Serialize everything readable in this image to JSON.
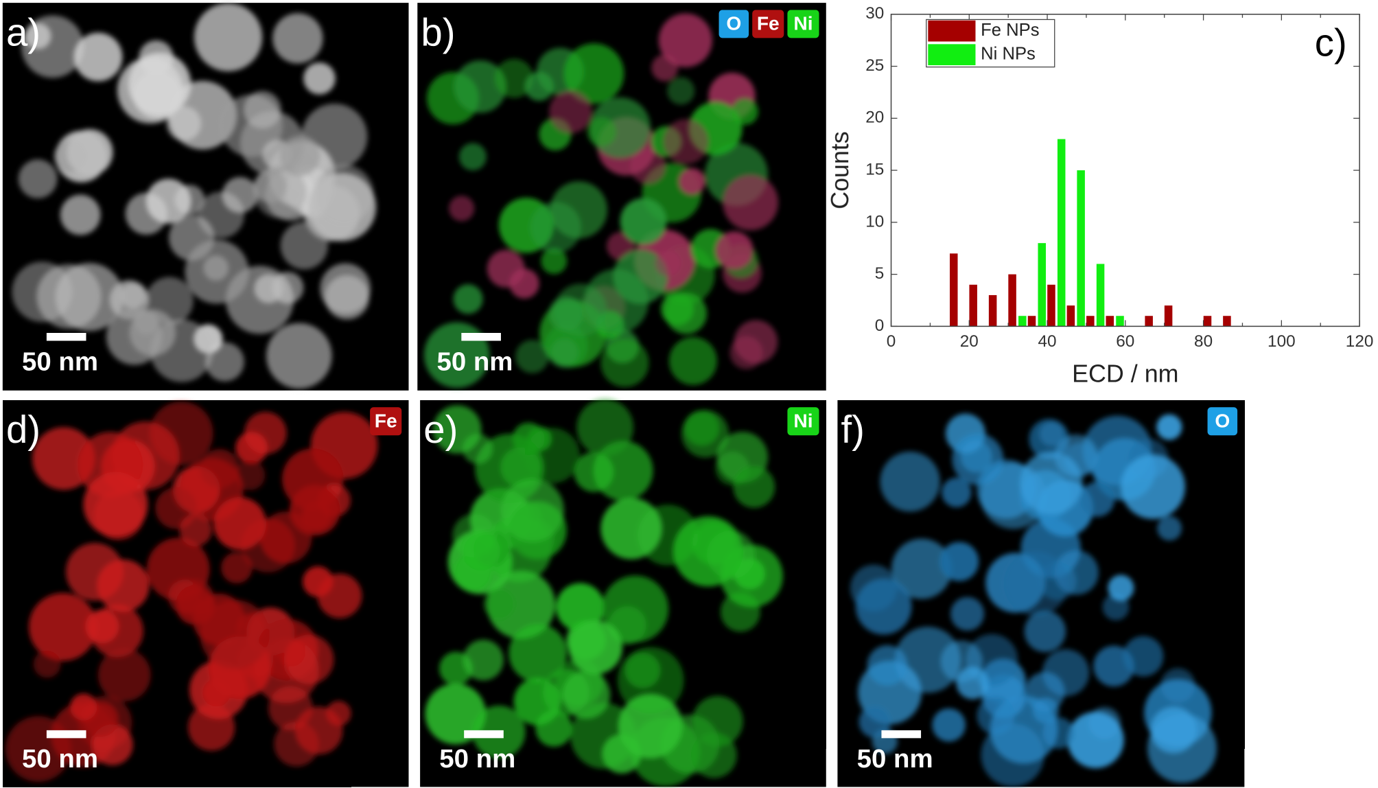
{
  "panels": [
    {
      "label": "a)",
      "scale_bar": "50 nm"
    },
    {
      "label": "b)",
      "scale_bar": "50 nm",
      "badges": [
        "O",
        "Fe",
        "Ni"
      ]
    },
    {
      "label": "d)",
      "scale_bar": "50 nm",
      "badges": [
        "Fe"
      ]
    },
    {
      "label": "e)",
      "scale_bar": "50 nm",
      "badges": [
        "Ni"
      ]
    },
    {
      "label": "f)",
      "scale_bar": "50 nm",
      "badges": [
        "O"
      ]
    }
  ],
  "chart_data": {
    "type": "bar",
    "panel_label": "c)",
    "x_label": "ECD / nm",
    "y_label": "Counts",
    "x": [
      17.5,
      22.5,
      27.5,
      32.5,
      37.5,
      42.5,
      47.5,
      52.5,
      57.5,
      62.5,
      67.5,
      72.5,
      77.5,
      82.5,
      87.5
    ],
    "series": [
      {
        "name": "Fe NPs",
        "color": "#a50000",
        "values": [
          7,
          4,
          3,
          5,
          1,
          4,
          2,
          1,
          1,
          0,
          1,
          2,
          0,
          1,
          1
        ]
      },
      {
        "name": "Ni NPs",
        "color": "#11ee11",
        "values": [
          0,
          0,
          0,
          1,
          8,
          18,
          15,
          6,
          1,
          0,
          0,
          0,
          0,
          0,
          0
        ]
      }
    ],
    "xlim": [
      0,
      120
    ],
    "xticks": [
      0,
      20,
      40,
      60,
      80,
      100,
      120
    ],
    "ylim": [
      0,
      30
    ],
    "yticks": [
      0,
      5,
      10,
      15,
      20,
      25,
      30
    ],
    "legend": "upper left"
  }
}
